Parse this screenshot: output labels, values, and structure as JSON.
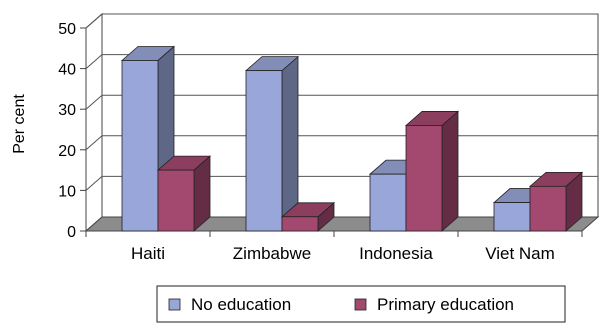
{
  "chart_data": {
    "type": "bar",
    "categories": [
      "Haiti",
      "Zimbabwe",
      "Indonesia",
      "Viet Nam"
    ],
    "series": [
      {
        "name": "No education",
        "values": [
          42,
          39.5,
          14,
          7
        ],
        "color": "#99a6d9"
      },
      {
        "name": "Primary education",
        "values": [
          15,
          3.5,
          26,
          11
        ],
        "color": "#a3496f"
      }
    ],
    "ylabel": "Per cent",
    "ylim": [
      0,
      50
    ],
    "yticks": [
      0,
      10,
      20,
      30,
      40,
      50
    ],
    "grid": true,
    "legend": "bottom",
    "style": "3d-clustered"
  }
}
